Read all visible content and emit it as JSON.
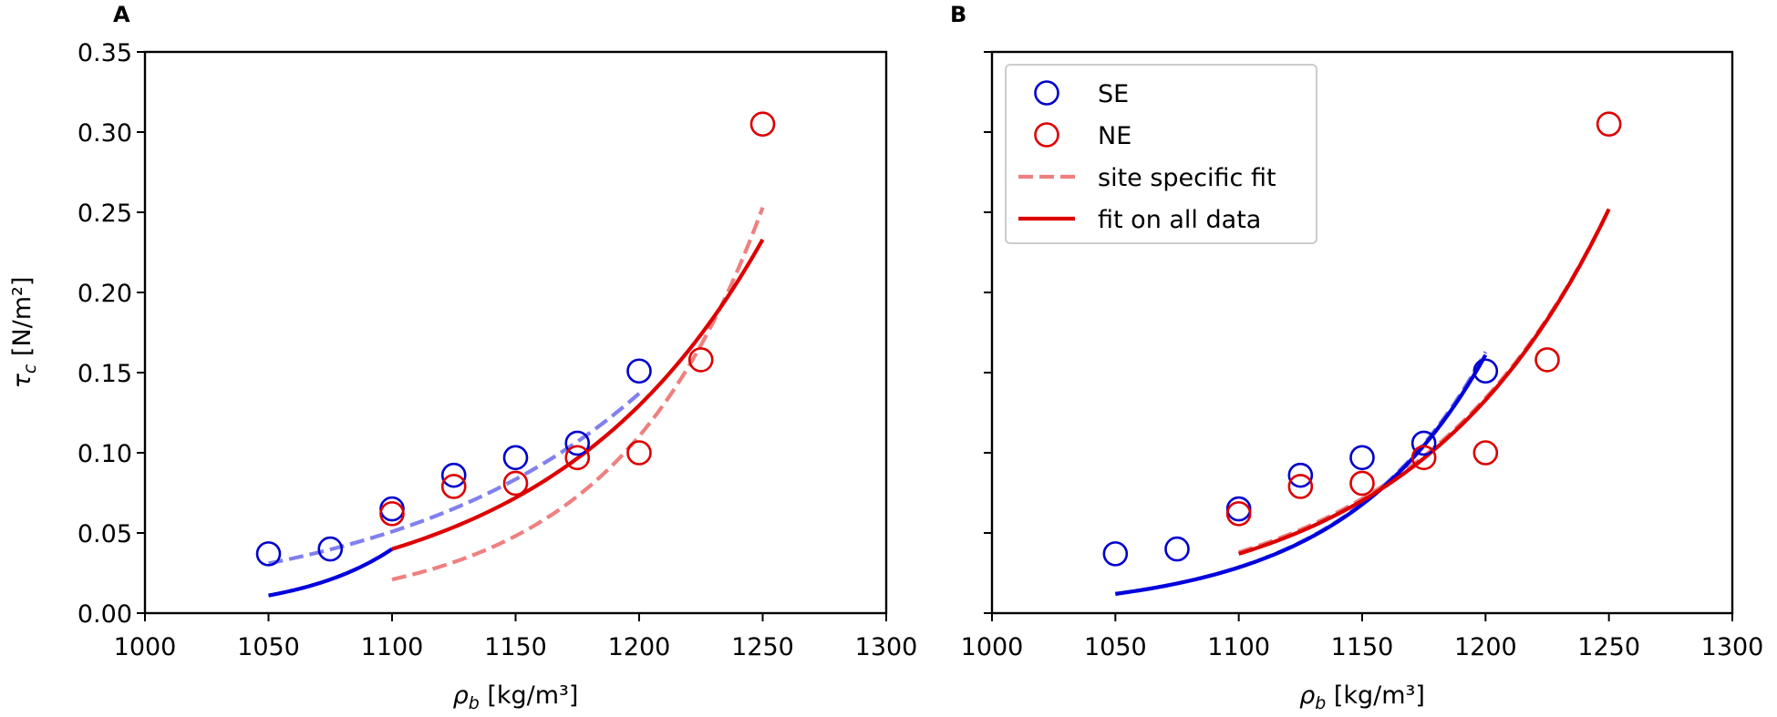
{
  "chart_data": [
    {
      "panel": "A",
      "type": "scatter",
      "xlabel": "ρ_b [kg/m³]",
      "ylabel": "τ_c [N/m²]",
      "xlim": [
        1000,
        1300
      ],
      "ylim": [
        0,
        0.35
      ],
      "xticks": [
        1000,
        1050,
        1100,
        1150,
        1200,
        1250,
        1300
      ],
      "yticks": [
        0.0,
        0.05,
        0.1,
        0.15,
        0.2,
        0.25,
        0.3,
        0.35
      ],
      "legend": false,
      "series": [
        {
          "name": "SE",
          "kind": "markers",
          "color": "#0000cc",
          "x": [
            1050,
            1075,
            1100,
            1125,
            1150,
            1175,
            1200
          ],
          "y": [
            0.037,
            0.04,
            0.065,
            0.086,
            0.097,
            0.106,
            0.151
          ]
        },
        {
          "name": "NE",
          "kind": "markers",
          "color": "#dd0000",
          "x": [
            1100,
            1125,
            1150,
            1175,
            1200,
            1225,
            1250
          ],
          "y": [
            0.062,
            0.079,
            0.081,
            0.097,
            0.1,
            0.158,
            0.305
          ]
        },
        {
          "name": "SE site specific fit",
          "kind": "dashed",
          "color": "#8080ee",
          "x": [
            1050,
            1200
          ],
          "y": [
            0.031,
            0.137
          ],
          "model": "exp"
        },
        {
          "name": "NE site specific fit",
          "kind": "dashed",
          "color": "#ee8080",
          "x": [
            1100,
            1250
          ],
          "y": [
            0.021,
            0.253
          ],
          "model": "exp"
        },
        {
          "name": "fit on all data (SE range)",
          "kind": "solid",
          "color": "#0000dd",
          "x": [
            1050,
            1100
          ],
          "y": [
            0.011,
            0.04
          ],
          "model": "exp"
        },
        {
          "name": "fit on all data",
          "kind": "solid",
          "color": "#dd0000",
          "x": [
            1100,
            1250
          ],
          "y": [
            0.04,
            0.233
          ],
          "model": "exp"
        }
      ]
    },
    {
      "panel": "B",
      "type": "scatter",
      "xlabel": "ρ_b [kg/m³]",
      "ylabel": "",
      "xlim": [
        1000,
        1300
      ],
      "ylim": [
        0,
        0.35
      ],
      "xticks": [
        1000,
        1050,
        1100,
        1150,
        1200,
        1250,
        1300
      ],
      "yticks": [],
      "legend": true,
      "series": [
        {
          "name": "SE",
          "kind": "markers",
          "color": "#0000cc",
          "x": [
            1050,
            1075,
            1100,
            1125,
            1150,
            1175,
            1200
          ],
          "y": [
            0.037,
            0.04,
            0.065,
            0.086,
            0.097,
            0.106,
            0.151
          ]
        },
        {
          "name": "NE",
          "kind": "markers",
          "color": "#dd0000",
          "x": [
            1100,
            1125,
            1150,
            1175,
            1200,
            1225,
            1250
          ],
          "y": [
            0.062,
            0.079,
            0.081,
            0.097,
            0.1,
            0.158,
            0.305
          ]
        },
        {
          "name": "SE site specific fit",
          "kind": "dashed",
          "color": "#8080ee",
          "x": [
            1050,
            1200
          ],
          "y": [
            0.012,
            0.163
          ],
          "model": "exp"
        },
        {
          "name": "NE site specific fit",
          "kind": "dashed",
          "color": "#ee8080",
          "x": [
            1100,
            1250
          ],
          "y": [
            0.038,
            0.252
          ],
          "model": "exp"
        },
        {
          "name": "SE fit on all data",
          "kind": "solid",
          "color": "#0000dd",
          "x": [
            1050,
            1200
          ],
          "y": [
            0.012,
            0.161
          ],
          "model": "exp"
        },
        {
          "name": "NE fit on all data",
          "kind": "solid",
          "color": "#dd0000",
          "x": [
            1100,
            1250
          ],
          "y": [
            0.037,
            0.252
          ],
          "model": "exp"
        }
      ],
      "legend_entries": [
        {
          "label": "SE",
          "kind": "marker",
          "color": "#0000cc"
        },
        {
          "label": "NE",
          "kind": "marker",
          "color": "#dd0000"
        },
        {
          "label": "site specific fit",
          "kind": "dashed",
          "color": "#ee8080"
        },
        {
          "label": "fit on all data",
          "kind": "solid",
          "color": "#dd0000"
        }
      ]
    }
  ]
}
